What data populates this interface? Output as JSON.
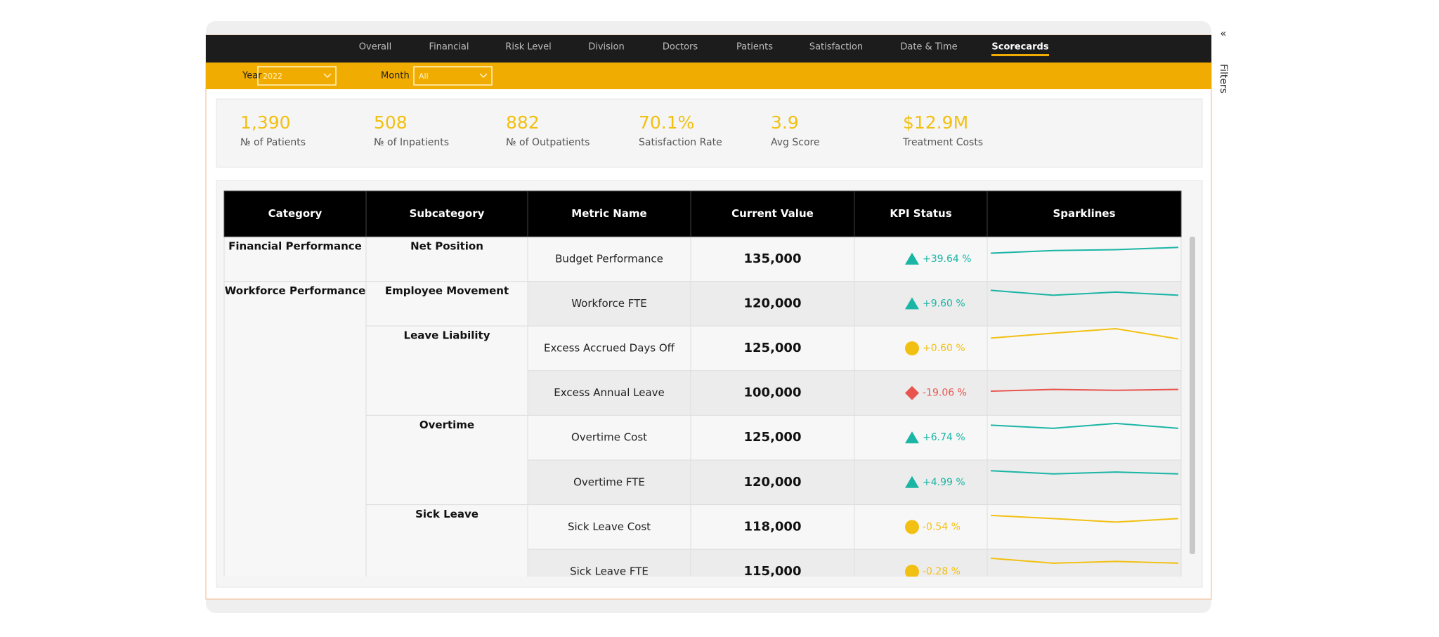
{
  "nav": [
    {
      "label": "Overall"
    },
    {
      "label": "Financial"
    },
    {
      "label": "Risk Level"
    },
    {
      "label": "Division"
    },
    {
      "label": "Doctors"
    },
    {
      "label": "Patients"
    },
    {
      "label": "Satisfaction"
    },
    {
      "label": "Date & Time"
    },
    {
      "label": "Scorecards",
      "active": true
    }
  ],
  "filters": [
    {
      "label": "Year",
      "value": "2022"
    },
    {
      "label": "Month",
      "value": "All"
    }
  ],
  "kpis": [
    {
      "value": "1,390",
      "label": "№ of Patients"
    },
    {
      "value": "508",
      "label": "№ of Inpatients"
    },
    {
      "value": "882",
      "label": "№ of Outpatients"
    },
    {
      "value": "70.1%",
      "label": "Satisfaction Rate"
    },
    {
      "value": "3.9",
      "label": "Avg Score"
    },
    {
      "value": "$12.9M",
      "label": "Treatment Costs"
    }
  ],
  "table": {
    "columns": [
      "Category",
      "Subcategory",
      "Metric Name",
      "Current Value",
      "KPI Status",
      "Sparklines"
    ],
    "categories": [
      {
        "name": "Financial Performance",
        "subcategories": [
          {
            "name": "Net Position",
            "metrics": [
              {
                "name": "Budget Performance",
                "value": "135,000",
                "kpi": "+39.64 %",
                "icon": "up",
                "color": "#1ab5a5",
                "sparkline": [
                  6.3,
                  6.9,
                  7.1,
                  7.6
                ]
              }
            ]
          }
        ]
      },
      {
        "name": "Workforce Performance",
        "subcategories": [
          {
            "name": "Employee Movement",
            "metrics": [
              {
                "name": "Workforce FTE",
                "value": "120,000",
                "kpi": "+9.60 %",
                "icon": "up",
                "color": "#1ab5a5",
                "sparkline": [
                  8.0,
                  6.9,
                  7.6,
                  6.9
                ]
              }
            ]
          },
          {
            "name": "Leave Liability",
            "metrics": [
              {
                "name": "Excess Accrued Days Off",
                "value": "125,000",
                "kpi": "+0.60 %",
                "icon": "circle",
                "color": "#f2c012",
                "sparkline": [
                  7.3,
                  8.4,
                  9.4,
                  7.1
                ]
              },
              {
                "name": "Excess Annual Leave",
                "value": "100,000",
                "kpi": "-19.06 %",
                "icon": "diamond",
                "color": "#e8554e",
                "sparkline": [
                  5.4,
                  5.8,
                  5.6,
                  5.8
                ]
              }
            ]
          },
          {
            "name": "Overtime",
            "metrics": [
              {
                "name": "Overtime Cost",
                "value": "125,000",
                "kpi": "+6.74 %",
                "icon": "up",
                "color": "#1ab5a5",
                "sparkline": [
                  7.8,
                  7.1,
                  8.2,
                  7.1
                ]
              },
              {
                "name": "Overtime FTE",
                "value": "120,000",
                "kpi": "+4.99 %",
                "icon": "up",
                "color": "#1ab5a5",
                "sparkline": [
                  7.6,
                  6.9,
                  7.3,
                  6.9
                ]
              }
            ]
          },
          {
            "name": "Sick Leave",
            "metrics": [
              {
                "name": "Sick Leave Cost",
                "value": "118,000",
                "kpi": "-0.54 %",
                "icon": "circle",
                "color": "#f2c012",
                "sparkline": [
                  7.6,
                  6.9,
                  6.1,
                  6.9
                ]
              },
              {
                "name": "Sick Leave FTE",
                "value": "115,000",
                "kpi": "-0.28 %",
                "icon": "circle",
                "color": "#f2c012",
                "sparkline": [
                  8.0,
                  6.9,
                  7.3,
                  6.9
                ]
              }
            ]
          }
        ]
      }
    ]
  },
  "side": {
    "collapse": "«",
    "filters": "Filters"
  }
}
